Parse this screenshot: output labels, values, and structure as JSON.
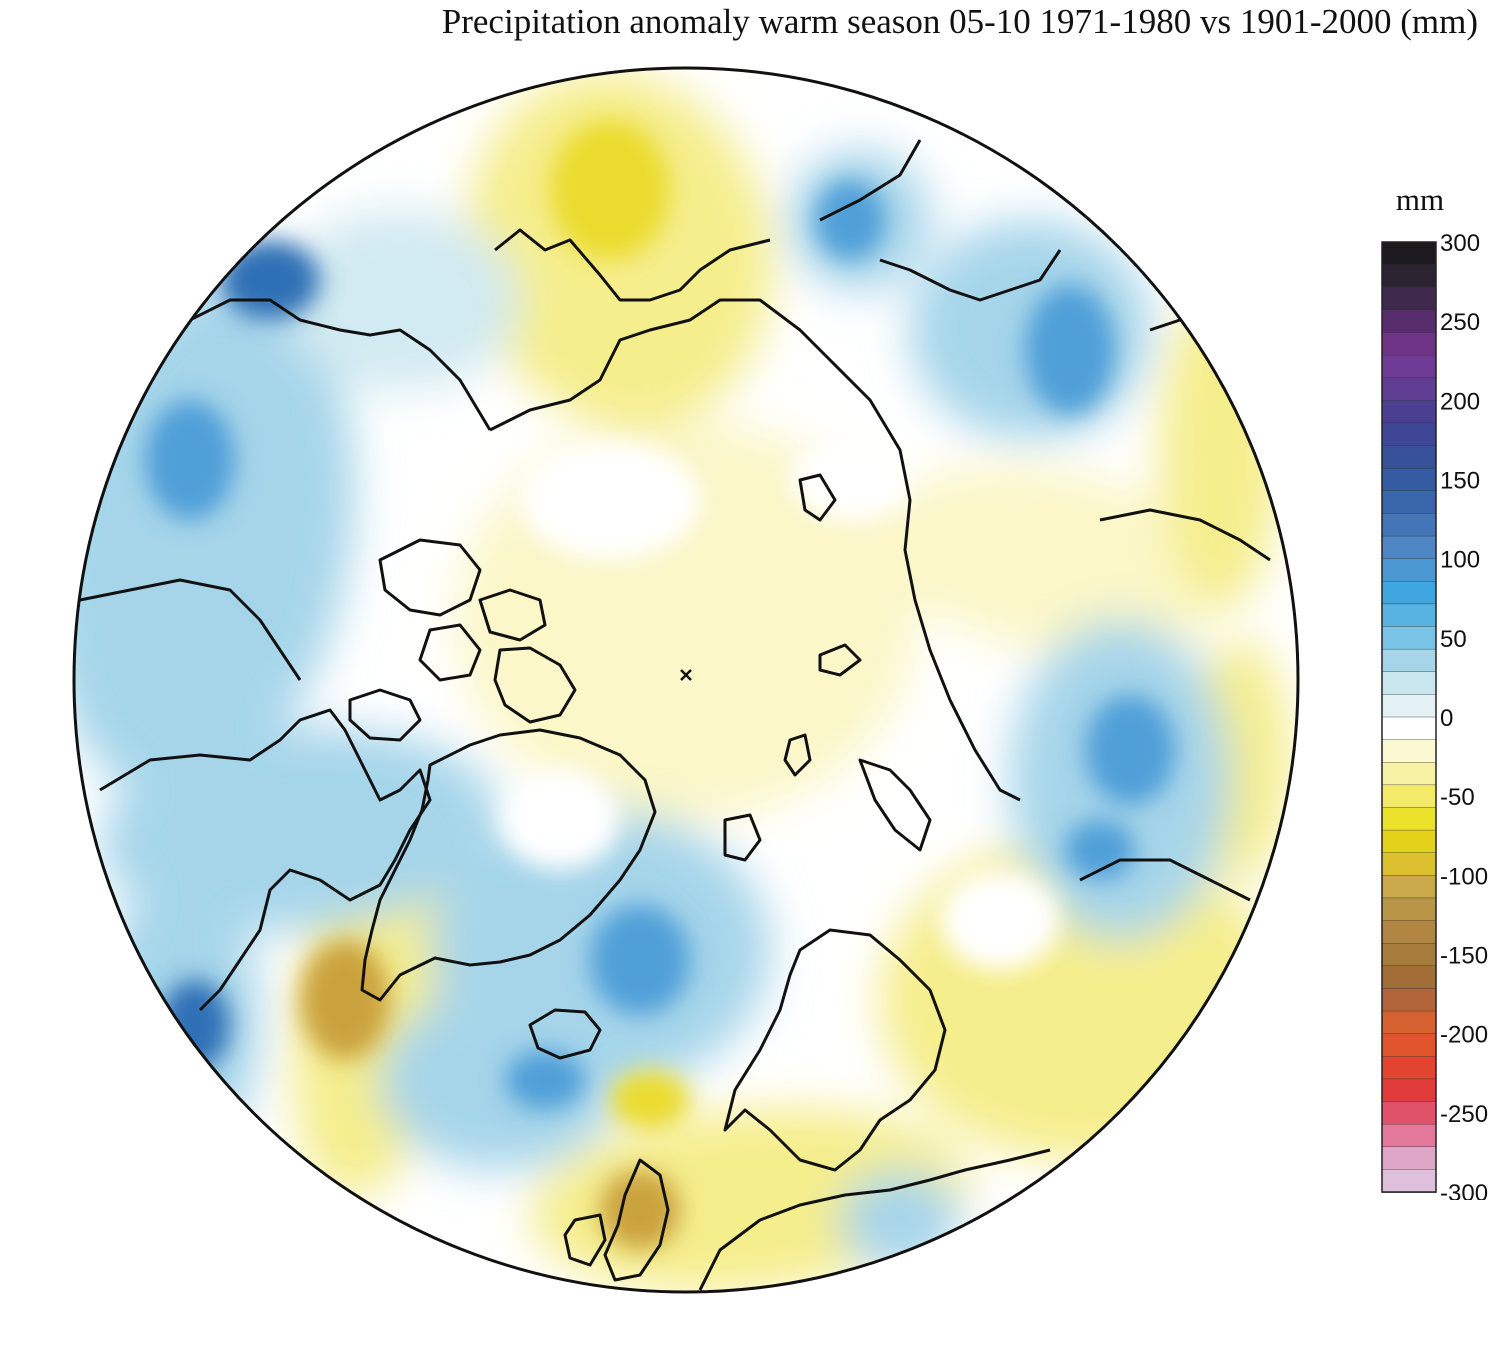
{
  "title": "Precipitation anomaly warm season 05-10 1971-1980 vs 1901-2000 (mm)",
  "legend": {
    "unit": "mm",
    "min": -300,
    "max": 300,
    "ticks": [
      "300",
      "250",
      "200",
      "150",
      "100",
      "50",
      "0",
      "-50",
      "-100",
      "-150",
      "-200",
      "-250",
      "-300"
    ],
    "palette_top_to_bottom": [
      "#1c1a1f",
      "#2b2330",
      "#3e2a4a",
      "#582d6e",
      "#6e3387",
      "#6f3b95",
      "#5e3d93",
      "#4b3f91",
      "#3e4695",
      "#37509a",
      "#355ba2",
      "#3a67ac",
      "#4376b8",
      "#4e87c4",
      "#4c98d2",
      "#3fa6df",
      "#58b3e2",
      "#79c3e6",
      "#a4d5e9",
      "#c9e5ee",
      "#e4f1f4",
      "#ffffff",
      "#fbf9d2",
      "#f7f2a4",
      "#f2ea68",
      "#ebe02a",
      "#e4d21a",
      "#dcc030",
      "#c9a94a",
      "#b99548",
      "#b08642",
      "#a77b3c",
      "#a36d38",
      "#b26538",
      "#d4612f",
      "#e0552c",
      "#e24430",
      "#e03a3a",
      "#e0526a",
      "#e2799b",
      "#e0a6c8",
      "#dfc0dc"
    ]
  },
  "map": {
    "projection": "north polar stereographic",
    "colors": {
      "wet_strong": "#2f6fb5",
      "wet": "#4f9fd8",
      "wet_light": "#a6d5ea",
      "wet_faint": "#d2eaf1",
      "neutral": "#ffffff",
      "dry_faint": "#fbf7c8",
      "dry_light": "#f5ee8c",
      "dry": "#ebdb2e",
      "dry_strong": "#caa23c",
      "coastline": "#111111"
    }
  }
}
